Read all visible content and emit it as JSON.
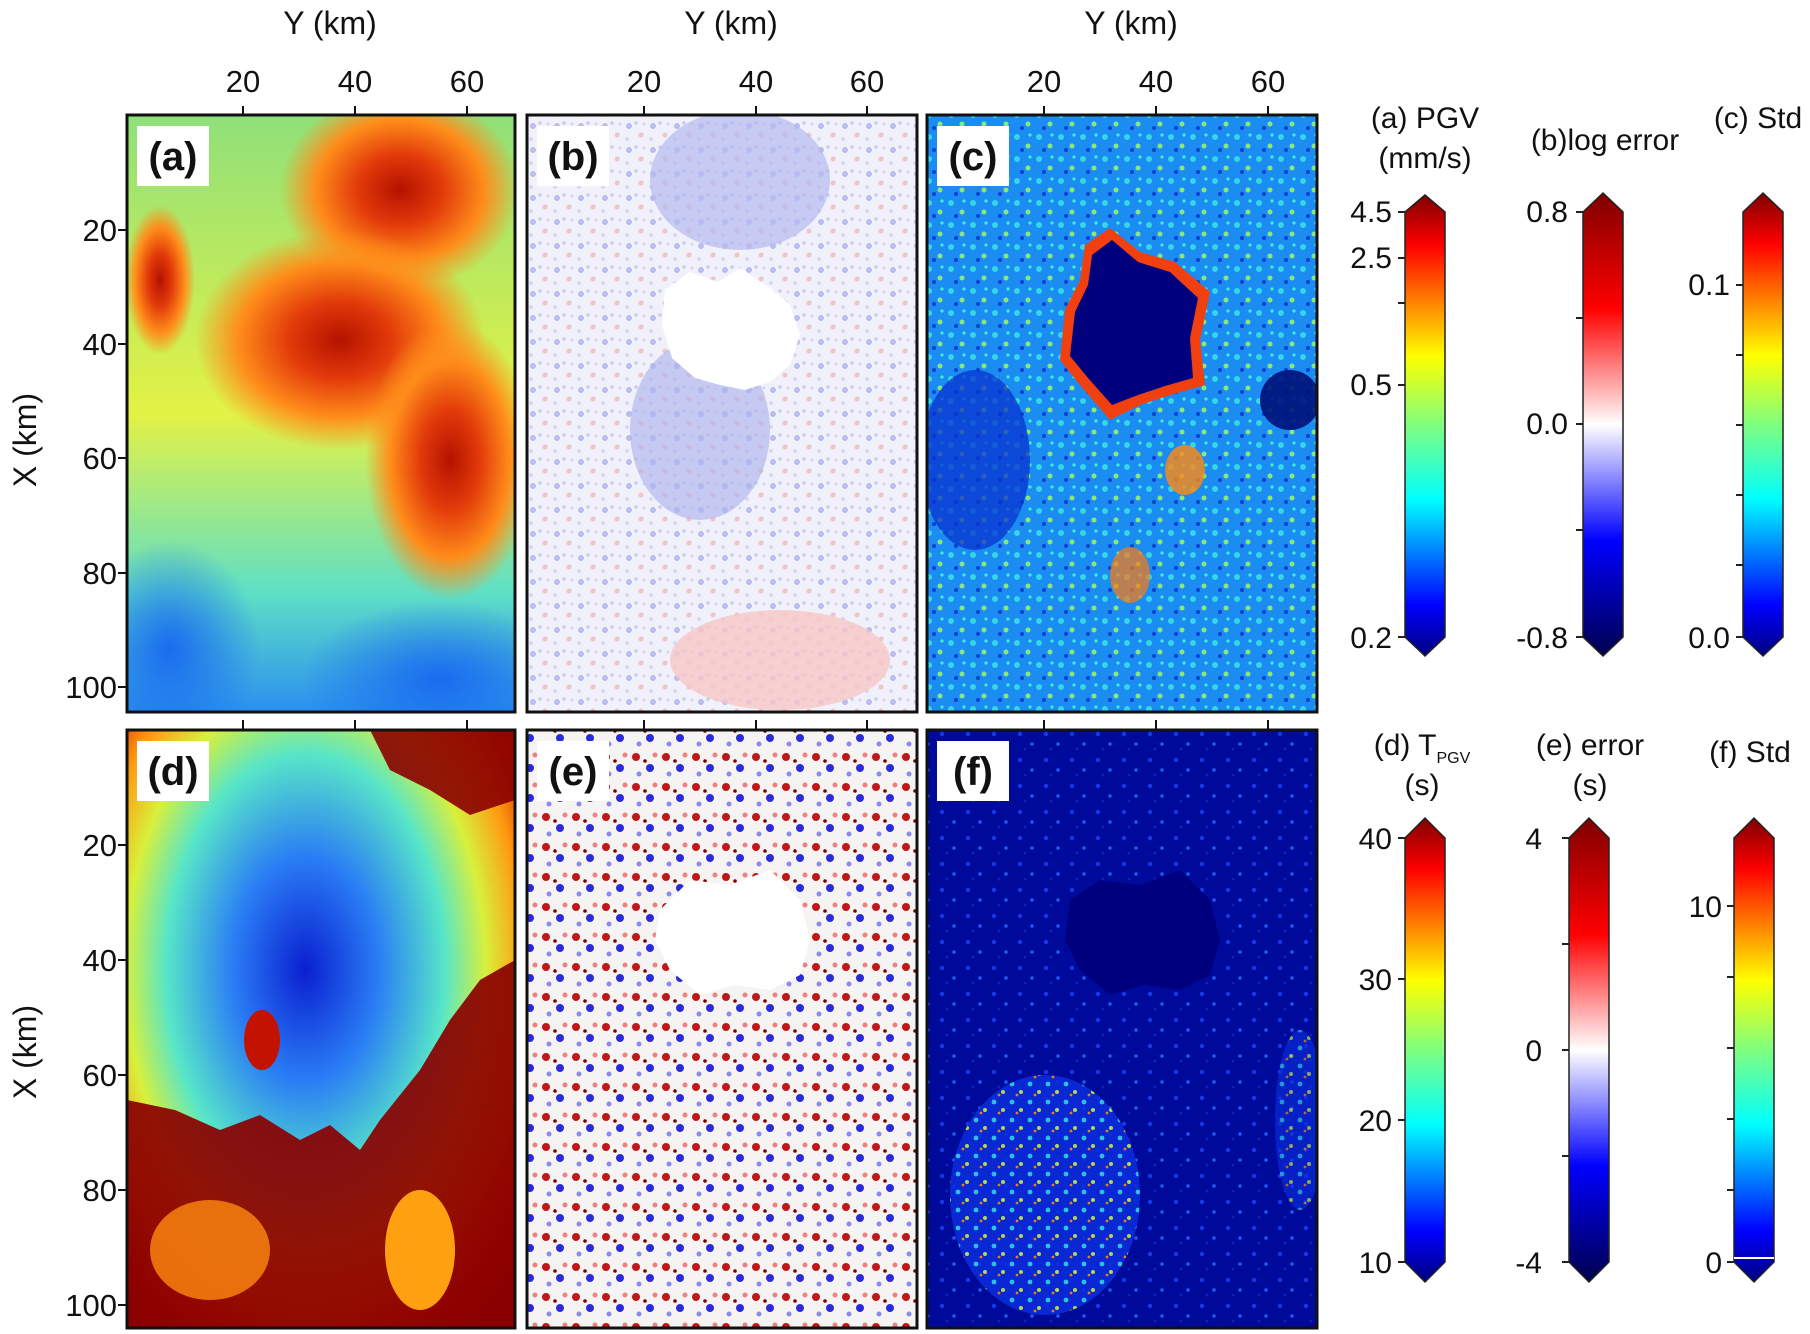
{
  "chart_data": [
    {
      "type": "heatmap",
      "panel_label": "(a)",
      "top_axis_label": "Y (km)",
      "left_axis_label": "X (km)",
      "x_ticks": [
        "20",
        "40",
        "60"
      ],
      "y_ticks": [
        "20",
        "40",
        "60",
        "80",
        "100"
      ],
      "colormap": "jet",
      "masked_center": false,
      "colorbar": {
        "title_lines": [
          "(a) PGV",
          "(mm/s)"
        ],
        "ticks": [
          "4.5",
          "2.5",
          "0.5",
          "0.2"
        ],
        "scale": "log"
      }
    },
    {
      "type": "heatmap",
      "panel_label": "(b)",
      "top_axis_label": "Y (km)",
      "x_ticks": [
        "20",
        "40",
        "60"
      ],
      "colormap": "seismic",
      "masked_center": true,
      "colorbar": {
        "title_lines": [
          "(b)log error"
        ],
        "ticks": [
          "0.8",
          "0.0",
          "-0.8"
        ]
      }
    },
    {
      "type": "heatmap",
      "panel_label": "(c)",
      "top_axis_label": "Y (km)",
      "x_ticks": [
        "20",
        "40",
        "60"
      ],
      "colormap": "jet",
      "masked_center": true,
      "colorbar": {
        "title_lines": [
          "(c) Std"
        ],
        "ticks": [
          "0.1",
          "0.0"
        ]
      }
    },
    {
      "type": "heatmap",
      "panel_label": "(d)",
      "left_axis_label": "X (km)",
      "y_ticks": [
        "20",
        "40",
        "60",
        "80",
        "100"
      ],
      "colormap": "jet",
      "masked_center": false,
      "colorbar": {
        "title_lines": [
          "(d) T",
          "(s)"
        ],
        "title_subscript": "PGV",
        "ticks": [
          "40",
          "30",
          "20",
          "10"
        ]
      }
    },
    {
      "type": "heatmap",
      "panel_label": "(e)",
      "colormap": "seismic",
      "masked_center": true,
      "colorbar": {
        "title_lines": [
          "(e) error",
          "(s)"
        ],
        "ticks": [
          "4",
          "0",
          "-4"
        ]
      }
    },
    {
      "type": "heatmap",
      "panel_label": "(f)",
      "colormap": "jet",
      "masked_center": false,
      "colorbar": {
        "title_lines": [
          "(f) Std"
        ],
        "ticks": [
          "10",
          "0"
        ]
      }
    }
  ],
  "colors": {
    "jet": [
      "#00007f",
      "#0000ff",
      "#007fff",
      "#00ffff",
      "#7fff7f",
      "#ffff00",
      "#ff7f00",
      "#ff0000",
      "#7f0000"
    ],
    "seismic": [
      "#00004c",
      "#0000ff",
      "#ffffff",
      "#ff0000",
      "#7f0000"
    ]
  }
}
